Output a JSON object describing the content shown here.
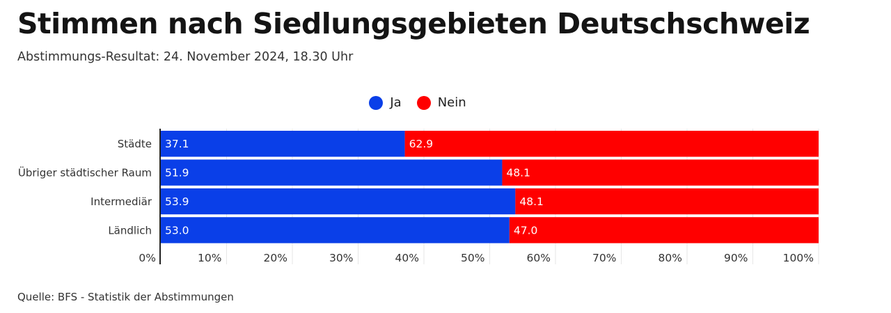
{
  "header": {
    "title": "Stimmen nach Siedlungsgebieten Deutschschweiz",
    "subtitle": "Abstimmungs-Resultat: 24. November 2024, 18.30 Uhr"
  },
  "footer": {
    "source": "Quelle: BFS - Statistik der Abstimmungen"
  },
  "colors": {
    "ja": "#0a3fe8",
    "nein": "#ff0000",
    "grid": "#e6e6e6",
    "axis": "#222222"
  },
  "chart_data": {
    "type": "bar",
    "orientation": "horizontal",
    "stacked": true,
    "categories": [
      "Städte",
      "Übriger städtischer Raum",
      "Intermediär",
      "Ländlich"
    ],
    "series": [
      {
        "name": "Ja",
        "values": [
          37.1,
          51.9,
          53.9,
          53.0
        ],
        "labels": [
          "37.1",
          "51.9",
          "53.9",
          "53.0"
        ],
        "color": "#0a3fe8"
      },
      {
        "name": "Nein",
        "values": [
          62.9,
          48.1,
          48.1,
          47.0
        ],
        "labels": [
          "62.9",
          "48.1",
          "48.1",
          "47.0"
        ],
        "color": "#ff0000"
      }
    ],
    "xlim": [
      0,
      100
    ],
    "xticks": [
      "0%",
      "10%",
      "20%",
      "30%",
      "40%",
      "50%",
      "60%",
      "70%",
      "80%",
      "90%",
      "100%"
    ],
    "grid": true,
    "legend_position": "top-center"
  }
}
